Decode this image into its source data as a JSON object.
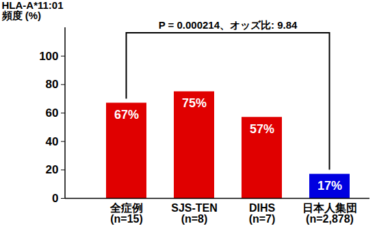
{
  "chart_data": {
    "type": "bar",
    "y_label": "HLA-A*11:01\n頻度 (%)",
    "categories": [
      "全症例\n(n=15)",
      "SJS-TEN\n(n=8)",
      "DIHS\n(n=7)",
      "日本人集団\n(n=2,878)"
    ],
    "values": [
      67,
      75,
      57,
      17
    ],
    "value_labels": [
      "67%",
      "75%",
      "57%",
      "17%"
    ],
    "colors": [
      "#e00000",
      "#e00000",
      "#e00000",
      "#0000e0"
    ],
    "ylim": [
      0,
      120
    ],
    "yticks": [
      0,
      20,
      40,
      60,
      80,
      100
    ],
    "grid": false,
    "data_labels": true,
    "annotations": [
      {
        "text": "P = 0.000214、オッズ比: 9.84",
        "from": "全症例\n(n=15)",
        "to": "日本人集団\n(n=2,878)"
      }
    ]
  }
}
